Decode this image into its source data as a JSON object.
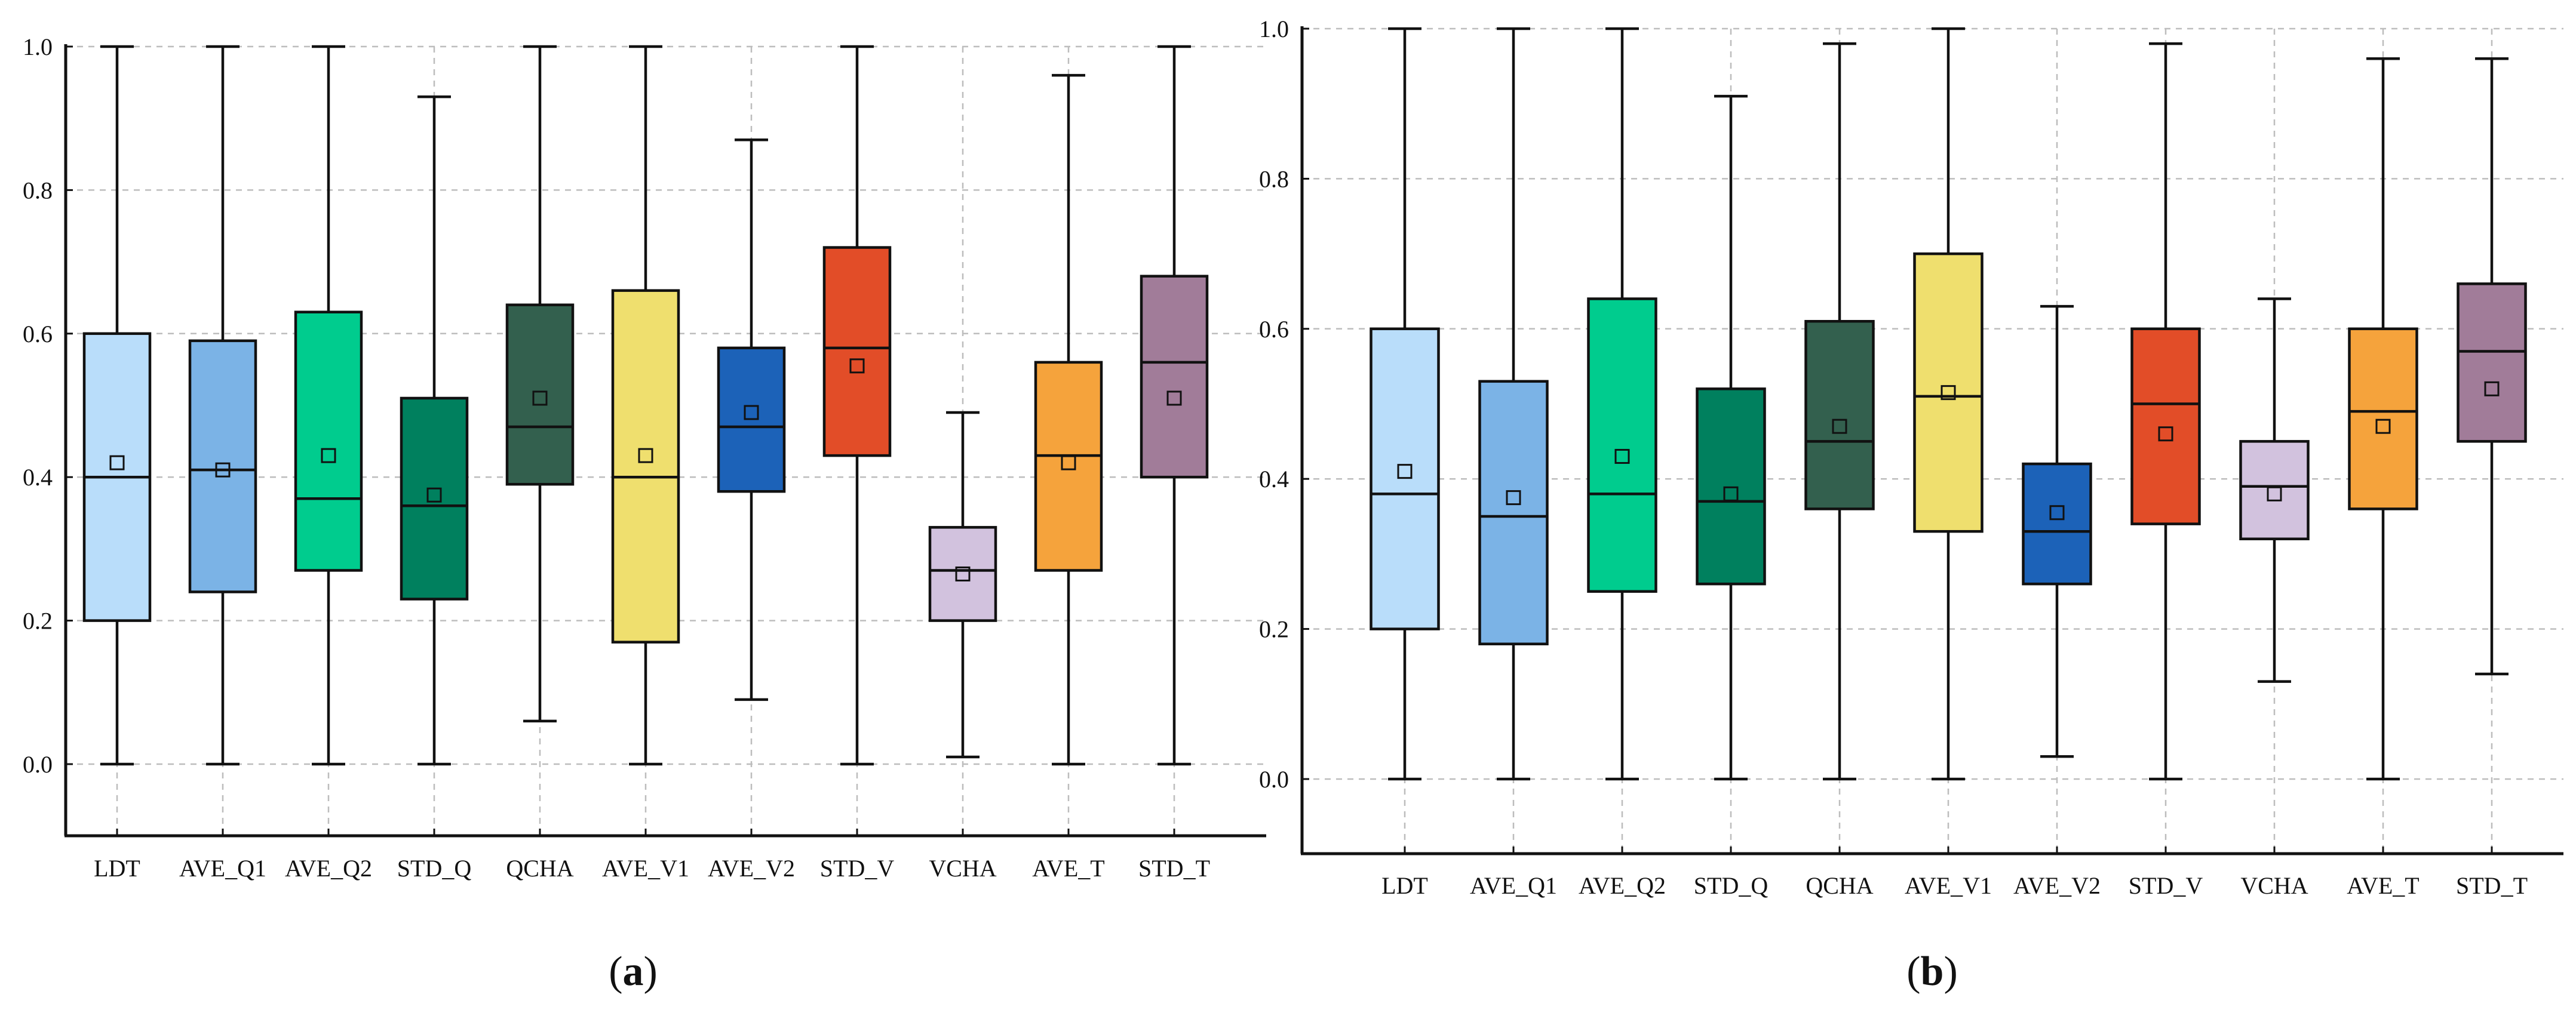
{
  "chart_data": [
    {
      "type": "box",
      "panel": "a",
      "ylim": [
        -0.1,
        1.0
      ],
      "yticks": [
        "0.0",
        "0.2",
        "0.4",
        "0.6",
        "0.8",
        "1.0"
      ],
      "grid": true,
      "categories": [
        "LDT",
        "AVE_Q1",
        "AVE_Q2",
        "STD_Q",
        "QCHA",
        "AVE_V1",
        "AVE_V2",
        "STD_V",
        "VCHA",
        "AVE_T",
        "STD_T"
      ],
      "boxes": [
        {
          "name": "LDT",
          "min": 0.0,
          "q1": 0.2,
          "median": 0.4,
          "q3": 0.6,
          "max": 1.0,
          "mean": 0.42,
          "color": "#b9ddfa"
        },
        {
          "name": "AVE_Q1",
          "min": 0.0,
          "q1": 0.24,
          "median": 0.41,
          "q3": 0.59,
          "max": 1.0,
          "mean": 0.41,
          "color": "#7bb3e6"
        },
        {
          "name": "AVE_Q2",
          "min": 0.0,
          "q1": 0.27,
          "median": 0.37,
          "q3": 0.63,
          "max": 1.0,
          "mean": 0.43,
          "color": "#00cc8e"
        },
        {
          "name": "STD_Q",
          "min": 0.0,
          "q1": 0.23,
          "median": 0.36,
          "q3": 0.51,
          "max": 0.93,
          "mean": 0.375,
          "color": "#00805e"
        },
        {
          "name": "QCHA",
          "min": 0.06,
          "q1": 0.39,
          "median": 0.47,
          "q3": 0.64,
          "max": 1.0,
          "mean": 0.51,
          "color": "#33604e"
        },
        {
          "name": "AVE_V1",
          "min": 0.0,
          "q1": 0.17,
          "median": 0.4,
          "q3": 0.66,
          "max": 1.0,
          "mean": 0.43,
          "color": "#efdf6e"
        },
        {
          "name": "AVE_V2",
          "min": 0.09,
          "q1": 0.38,
          "median": 0.47,
          "q3": 0.58,
          "max": 0.87,
          "mean": 0.49,
          "color": "#1c62b8"
        },
        {
          "name": "STD_V",
          "min": 0.0,
          "q1": 0.43,
          "median": 0.58,
          "q3": 0.72,
          "max": 1.0,
          "mean": 0.555,
          "color": "#e24d28"
        },
        {
          "name": "VCHA",
          "min": 0.01,
          "q1": 0.2,
          "median": 0.27,
          "q3": 0.33,
          "max": 0.49,
          "mean": 0.265,
          "color": "#d2c2de"
        },
        {
          "name": "AVE_T",
          "min": 0.0,
          "q1": 0.27,
          "median": 0.43,
          "q3": 0.56,
          "max": 0.96,
          "mean": 0.42,
          "color": "#f5a33c"
        },
        {
          "name": "STD_T",
          "min": 0.0,
          "q1": 0.4,
          "median": 0.56,
          "q3": 0.68,
          "max": 1.0,
          "mean": 0.51,
          "color": "#a17c99"
        }
      ],
      "caption": "(a)"
    },
    {
      "type": "box",
      "panel": "b",
      "ylim": [
        -0.1,
        1.0
      ],
      "yticks": [
        "0.0",
        "0.2",
        "0.4",
        "0.6",
        "0.8",
        "1.0"
      ],
      "grid": true,
      "categories": [
        "LDT",
        "AVE_Q1",
        "AVE_Q2",
        "STD_Q",
        "QCHA",
        "AVE_V1",
        "AVE_V2",
        "STD_V",
        "VCHA",
        "AVE_T",
        "STD_T"
      ],
      "boxes": [
        {
          "name": "LDT",
          "min": 0.0,
          "q1": 0.2,
          "median": 0.38,
          "q3": 0.6,
          "max": 1.0,
          "mean": 0.41,
          "color": "#b9ddfa"
        },
        {
          "name": "AVE_Q1",
          "min": 0.0,
          "q1": 0.18,
          "median": 0.35,
          "q3": 0.53,
          "max": 1.0,
          "mean": 0.375,
          "color": "#7bb3e6"
        },
        {
          "name": "AVE_Q2",
          "min": 0.0,
          "q1": 0.25,
          "median": 0.38,
          "q3": 0.64,
          "max": 1.0,
          "mean": 0.43,
          "color": "#00cc8e"
        },
        {
          "name": "STD_Q",
          "min": 0.0,
          "q1": 0.26,
          "median": 0.37,
          "q3": 0.52,
          "max": 0.91,
          "mean": 0.38,
          "color": "#00805e"
        },
        {
          "name": "QCHA",
          "min": 0.0,
          "q1": 0.36,
          "median": 0.45,
          "q3": 0.61,
          "max": 0.98,
          "mean": 0.47,
          "color": "#33604e"
        },
        {
          "name": "AVE_V1",
          "min": 0.0,
          "q1": 0.33,
          "median": 0.51,
          "q3": 0.7,
          "max": 1.0,
          "mean": 0.515,
          "color": "#efdf6e"
        },
        {
          "name": "AVE_V2",
          "min": 0.03,
          "q1": 0.26,
          "median": 0.33,
          "q3": 0.42,
          "max": 0.63,
          "mean": 0.355,
          "color": "#1c62b8"
        },
        {
          "name": "STD_V",
          "min": 0.0,
          "q1": 0.34,
          "median": 0.5,
          "q3": 0.6,
          "max": 0.98,
          "mean": 0.46,
          "color": "#e24d28"
        },
        {
          "name": "VCHA",
          "min": 0.13,
          "q1": 0.32,
          "median": 0.39,
          "q3": 0.45,
          "max": 0.64,
          "mean": 0.38,
          "color": "#d2c2de"
        },
        {
          "name": "AVE_T",
          "min": 0.0,
          "q1": 0.36,
          "median": 0.49,
          "q3": 0.6,
          "max": 0.96,
          "mean": 0.47,
          "color": "#f5a33c"
        },
        {
          "name": "STD_T",
          "min": 0.14,
          "q1": 0.45,
          "median": 0.57,
          "q3": 0.66,
          "max": 0.96,
          "mean": 0.52,
          "color": "#a17c99"
        }
      ],
      "caption": "(b)"
    }
  ]
}
